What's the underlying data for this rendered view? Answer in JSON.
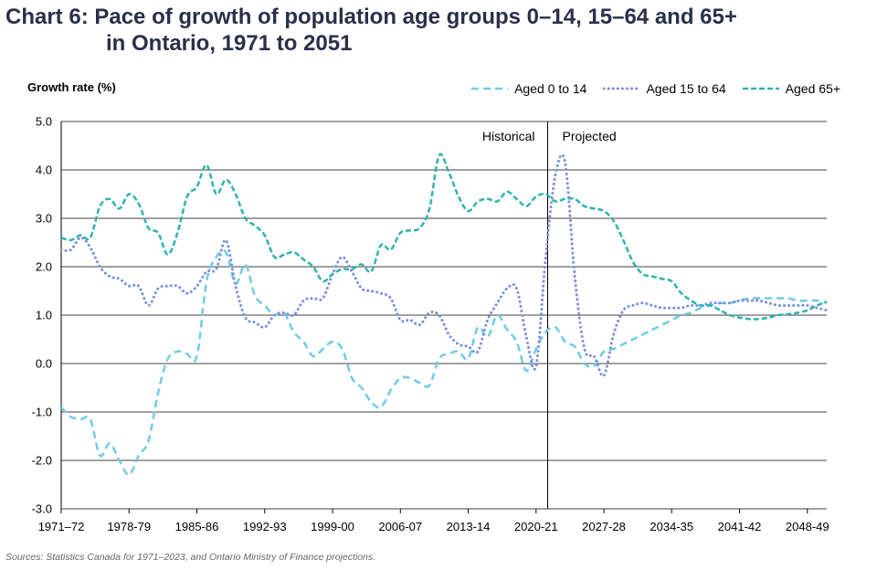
{
  "title_line1": "Chart 6: Pace of growth of population age groups 0–14, 15–64 and 65+",
  "title_line2": "in Ontario, 1971 to 2051",
  "sources": "Sources: Statistics Canada for 1971–2023, and Ontario Ministry of Finance projections.",
  "chart_data": {
    "type": "line",
    "title": "Pace of growth of population age groups 0–14, 15–64 and 65+ in Ontario, 1971 to 2051",
    "ylabel": "Growth rate (%)",
    "xlabel": "",
    "ylim": [
      -3.0,
      5.0
    ],
    "yticks": [
      "5.0",
      "4.0",
      "3.0",
      "2.0",
      "1.0",
      "0.0",
      "-1.0",
      "-2.0",
      "-3.0"
    ],
    "ytick_values": [
      5,
      4,
      3,
      2,
      1,
      0,
      -1,
      -2,
      -3
    ],
    "x_tick_labels": [
      "1971–72",
      "1978-79",
      "1985-86",
      "1992-93",
      "1999-00",
      "2006-07",
      "2013-14",
      "2020-21",
      "2027-28",
      "2034-35",
      "2041-42",
      "2048-49"
    ],
    "x_tick_years": [
      1971,
      1978,
      1985,
      1992,
      1999,
      2006,
      2013,
      2020,
      2027,
      2034,
      2041,
      2048
    ],
    "x_start": 1971,
    "x_end": 2050,
    "divider_year": 2021.2,
    "annotations": {
      "left": "Historical",
      "right": "Projected"
    },
    "legend_position": "top-right",
    "grid": true,
    "colors": {
      "aged_0_14": "#6fcbe8",
      "aged_15_64": "#7a8fe0",
      "aged_65_plus": "#2fb3ad",
      "axis": "#000000",
      "grid": "#000000"
    },
    "series": [
      {
        "name": "Aged 0 to 14",
        "dash": "dash",
        "x": [
          1971,
          1972,
          1973,
          1974,
          1975,
          1976,
          1977,
          1978,
          1979,
          1980,
          1981,
          1982,
          1983,
          1984,
          1985,
          1986,
          1987,
          1988,
          1989,
          1990,
          1991,
          1992,
          1993,
          1994,
          1995,
          1996,
          1997,
          1998,
          1999,
          2000,
          2001,
          2002,
          2003,
          2004,
          2005,
          2006,
          2007,
          2008,
          2009,
          2010,
          2011,
          2012,
          2013,
          2014,
          2015,
          2016,
          2017,
          2018,
          2019,
          2020,
          2021,
          2022,
          2023,
          2024,
          2025,
          2026,
          2027,
          2028,
          2029,
          2030,
          2031,
          2032,
          2033,
          2034,
          2035,
          2036,
          2037,
          2038,
          2039,
          2040,
          2041,
          2042,
          2043,
          2044,
          2045,
          2046,
          2047,
          2048,
          2049,
          2050
        ],
        "values": [
          -0.9,
          -1.1,
          -1.15,
          -1.15,
          -1.9,
          -1.65,
          -2.0,
          -2.3,
          -1.9,
          -1.6,
          -0.6,
          0.1,
          0.25,
          0.2,
          0.15,
          1.7,
          2.2,
          2.3,
          1.65,
          2.05,
          1.4,
          1.2,
          1.0,
          1.05,
          0.65,
          0.45,
          0.15,
          0.3,
          0.45,
          0.3,
          -0.3,
          -0.5,
          -0.8,
          -0.9,
          -0.55,
          -0.3,
          -0.3,
          -0.4,
          -0.45,
          0.1,
          0.2,
          0.25,
          0.1,
          0.75,
          0.55,
          1.0,
          0.7,
          0.45,
          -0.15,
          0.3,
          0.65,
          0.75,
          0.45,
          0.35,
          0.0,
          -0.05,
          0.25,
          0.3,
          0.4,
          0.5,
          0.6,
          0.7,
          0.8,
          0.9,
          1.0,
          1.05,
          1.15,
          1.2,
          1.25,
          1.25,
          1.3,
          1.35,
          1.35,
          1.35,
          1.35,
          1.35,
          1.3,
          1.3,
          1.3,
          1.25
        ]
      },
      {
        "name": "Aged 15 to 64",
        "dash": "dot",
        "x": [
          1971,
          1972,
          1973,
          1974,
          1975,
          1976,
          1977,
          1978,
          1979,
          1980,
          1981,
          1982,
          1983,
          1984,
          1985,
          1986,
          1987,
          1988,
          1989,
          1990,
          1991,
          1992,
          1993,
          1994,
          1995,
          1996,
          1997,
          1998,
          1999,
          2000,
          2001,
          2002,
          2003,
          2004,
          2005,
          2006,
          2007,
          2008,
          2009,
          2010,
          2011,
          2012,
          2013,
          2014,
          2015,
          2016,
          2017,
          2018,
          2019,
          2020,
          2021,
          2022,
          2023,
          2024,
          2025,
          2026,
          2027,
          2028,
          2029,
          2030,
          2031,
          2032,
          2033,
          2034,
          2035,
          2036,
          2037,
          2038,
          2039,
          2040,
          2041,
          2042,
          2043,
          2044,
          2045,
          2046,
          2047,
          2048,
          2049,
          2050
        ],
        "values": [
          2.35,
          2.35,
          2.6,
          2.4,
          2.0,
          1.8,
          1.75,
          1.6,
          1.6,
          1.2,
          1.55,
          1.6,
          1.6,
          1.45,
          1.6,
          1.9,
          1.95,
          2.55,
          1.6,
          0.95,
          0.85,
          0.75,
          1.0,
          1.05,
          1.0,
          1.3,
          1.35,
          1.35,
          1.85,
          2.2,
          1.9,
          1.55,
          1.5,
          1.45,
          1.35,
          0.9,
          0.9,
          0.8,
          1.05,
          1.0,
          0.6,
          0.4,
          0.35,
          0.25,
          0.9,
          1.25,
          1.55,
          1.55,
          0.55,
          -0.05,
          2.2,
          3.9,
          4.15,
          1.8,
          0.3,
          0.15,
          -0.25,
          0.6,
          1.1,
          1.2,
          1.25,
          1.2,
          1.15,
          1.15,
          1.15,
          1.2,
          1.2,
          1.25,
          1.25,
          1.25,
          1.3,
          1.3,
          1.3,
          1.25,
          1.2,
          1.2,
          1.2,
          1.2,
          1.15,
          1.1
        ]
      },
      {
        "name": "Aged 65+",
        "dash": "dashdot",
        "x": [
          1971,
          1972,
          1973,
          1974,
          1975,
          1976,
          1977,
          1978,
          1979,
          1980,
          1981,
          1982,
          1983,
          1984,
          1985,
          1986,
          1987,
          1988,
          1989,
          1990,
          1991,
          1992,
          1993,
          1994,
          1995,
          1996,
          1997,
          1998,
          1999,
          2000,
          2001,
          2002,
          2003,
          2004,
          2005,
          2006,
          2007,
          2008,
          2009,
          2010,
          2011,
          2012,
          2013,
          2014,
          2015,
          2016,
          2017,
          2018,
          2019,
          2020,
          2021,
          2022,
          2023,
          2024,
          2025,
          2026,
          2027,
          2028,
          2029,
          2030,
          2031,
          2032,
          2033,
          2034,
          2035,
          2036,
          2037,
          2038,
          2039,
          2040,
          2041,
          2042,
          2043,
          2044,
          2045,
          2046,
          2047,
          2048,
          2049,
          2050
        ],
        "values": [
          2.6,
          2.55,
          2.65,
          2.6,
          3.25,
          3.4,
          3.2,
          3.5,
          3.3,
          2.8,
          2.7,
          2.25,
          2.7,
          3.45,
          3.65,
          4.1,
          3.5,
          3.8,
          3.5,
          3.0,
          2.85,
          2.65,
          2.2,
          2.25,
          2.3,
          2.15,
          2.0,
          1.7,
          1.85,
          1.95,
          1.95,
          2.05,
          1.9,
          2.45,
          2.35,
          2.7,
          2.75,
          2.8,
          3.2,
          4.3,
          3.95,
          3.45,
          3.15,
          3.35,
          3.4,
          3.35,
          3.55,
          3.4,
          3.25,
          3.45,
          3.5,
          3.35,
          3.4,
          3.4,
          3.25,
          3.2,
          3.15,
          2.95,
          2.55,
          2.1,
          1.85,
          1.8,
          1.75,
          1.7,
          1.45,
          1.3,
          1.2,
          1.2,
          1.1,
          1.0,
          0.95,
          0.92,
          0.92,
          0.95,
          1.0,
          1.02,
          1.05,
          1.1,
          1.2,
          1.28
        ]
      }
    ]
  }
}
